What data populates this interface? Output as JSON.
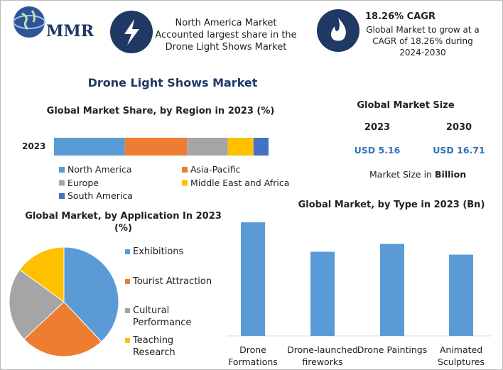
{
  "logo": {
    "text": "MMR"
  },
  "highlights": [
    {
      "text": "North America Market Accounted largest share in the Drone Light Shows Market"
    },
    {
      "title": "18.26% CAGR",
      "text": "Global Market to grow at a CAGR of 18.26% during 2024-2030"
    }
  ],
  "title": "Drone Light Shows Market",
  "market_size": {
    "title": "Global Market Size",
    "years": [
      "2023",
      "2030"
    ],
    "values": [
      "USD 5.16",
      "USD 16.71"
    ],
    "note": "Market Size in",
    "unit": "Billion"
  },
  "chart_data": [
    {
      "type": "stacked-bar",
      "orientation": "horizontal",
      "title": "Global Market Share, by Region in 2023 (%)",
      "categories": [
        "2023"
      ],
      "xlim": [
        0,
        100
      ],
      "legend": "bottom",
      "series": [
        {
          "name": "North America",
          "color": "#5b9bd5",
          "values": [
            33
          ]
        },
        {
          "name": "Asia-Pacific",
          "color": "#ed7d31",
          "values": [
            29
          ]
        },
        {
          "name": "Europe",
          "color": "#a5a5a5",
          "values": [
            19
          ]
        },
        {
          "name": "Middle East and Africa",
          "color": "#ffc000",
          "values": [
            12
          ]
        },
        {
          "name": "South America",
          "color": "#4472c4",
          "values": [
            7
          ]
        }
      ]
    },
    {
      "type": "pie",
      "title": "Global Market, by Application In 2023 (%)",
      "legend": "right",
      "categories": [
        "Exhibitions",
        "Tourist Attraction",
        "Cultural Performance",
        "Teaching Research"
      ],
      "values": [
        38,
        25,
        22,
        15
      ],
      "colors": [
        "#5b9bd5",
        "#ed7d31",
        "#a5a5a5",
        "#ffc000"
      ]
    },
    {
      "type": "bar",
      "title": "Global Market, by Type in 2023 (Bn)",
      "categories": [
        "Drone Formations",
        "Drone-launched fireworks",
        "Drone Paintings",
        "Animated Sculptures"
      ],
      "values": [
        1.58,
        1.17,
        1.28,
        1.13
      ],
      "color": "#5b9bd5",
      "ylim": [
        0,
        1.6
      ]
    }
  ]
}
